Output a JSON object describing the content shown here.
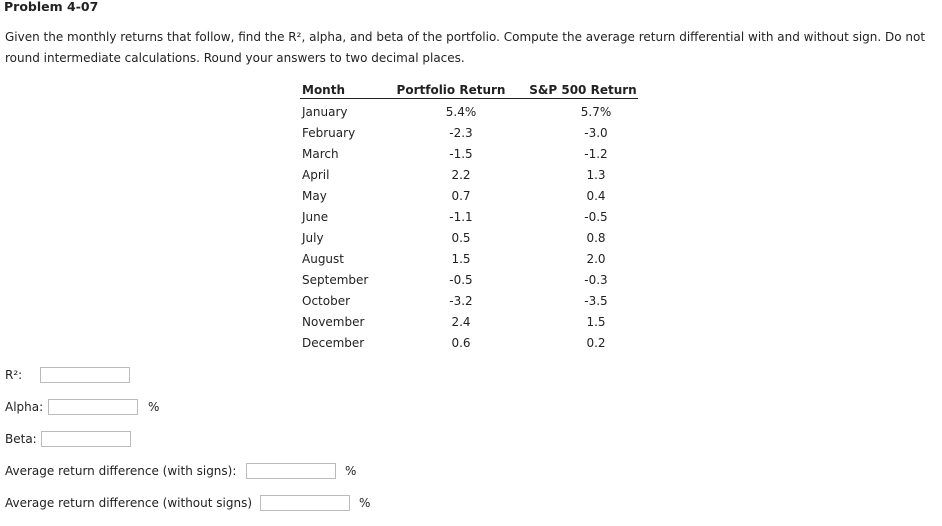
{
  "header": {
    "title": "Problem 4-07"
  },
  "instructions": [
    "Given the monthly returns that follow, find the R², alpha, and beta of the portfolio. Compute the average return differential with and without sign. Do not",
    "round intermediate calculations. Round your answers to two decimal places."
  ],
  "table": {
    "columns": [
      "Month",
      "Portfolio Return",
      "S&P 500 Return"
    ],
    "rows": [
      [
        "January",
        "5.4%",
        "5.7%"
      ],
      [
        "February",
        "-2.3",
        "-3.0"
      ],
      [
        "March",
        "-1.5",
        "-1.2"
      ],
      [
        "April",
        "2.2",
        "1.3"
      ],
      [
        "May",
        "0.7",
        "0.4"
      ],
      [
        "June",
        "-1.1",
        "-0.5"
      ],
      [
        "July",
        "0.5",
        "0.8"
      ],
      [
        "August",
        "1.5",
        "2.0"
      ],
      [
        "September",
        "-0.5",
        "-0.3"
      ],
      [
        "October",
        "-3.2",
        "-3.5"
      ],
      [
        "November",
        "2.4",
        "1.5"
      ],
      [
        "December",
        "0.6",
        "0.2"
      ]
    ]
  },
  "fields": [
    {
      "label": "R²:"
    },
    {
      "label": "Alpha:",
      "unit": "%"
    },
    {
      "label": "Beta:"
    },
    {
      "label": "Average return difference (with signs):",
      "unit": "%"
    },
    {
      "label": "Average return difference (without signs)",
      "unit": "%"
    }
  ]
}
